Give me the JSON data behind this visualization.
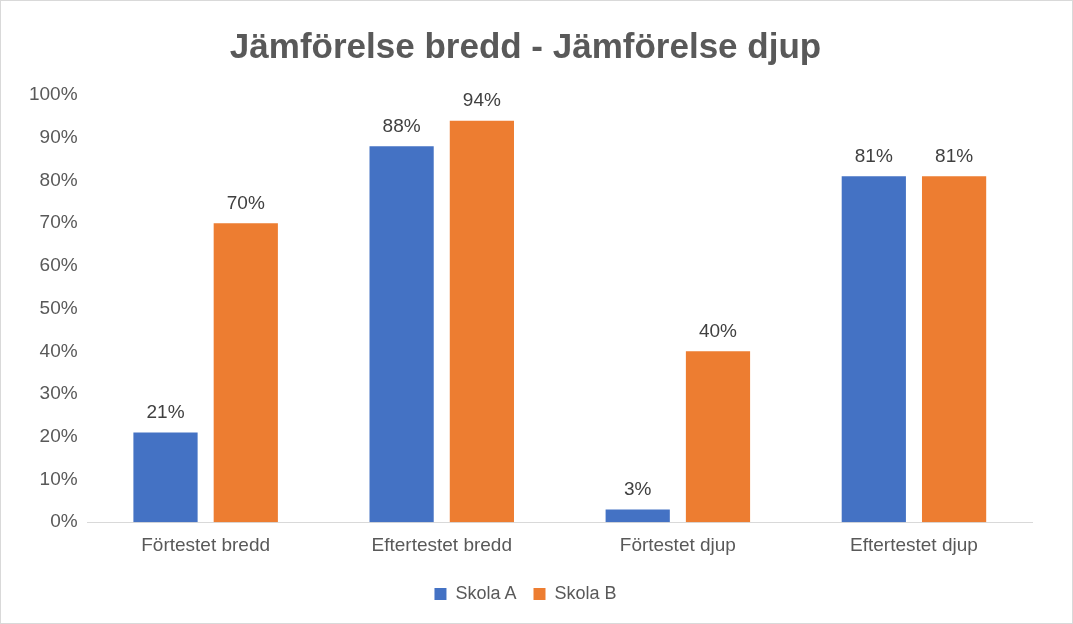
{
  "chart_data": {
    "type": "bar",
    "title": "Jämförelse bredd - Jämförelse djup",
    "categories": [
      "Förtestet bredd",
      "Eftertestet bredd",
      "Förtestet djup",
      "Eftertestet djup"
    ],
    "series": [
      {
        "name": "Skola A",
        "color": "#4472c4",
        "values": [
          21,
          88,
          3,
          81
        ],
        "value_labels": [
          "21%",
          "88%",
          "3%",
          "81%"
        ]
      },
      {
        "name": "Skola B",
        "color": "#ed7d31",
        "values": [
          70,
          94,
          40,
          81
        ],
        "value_labels": [
          "70%",
          "94%",
          "40%",
          "81%"
        ]
      }
    ],
    "ylim": [
      0,
      100
    ],
    "yticks": [
      {
        "value": 0,
        "label": "0%"
      },
      {
        "value": 10,
        "label": "10%"
      },
      {
        "value": 20,
        "label": "20%"
      },
      {
        "value": 30,
        "label": "30%"
      },
      {
        "value": 40,
        "label": "40%"
      },
      {
        "value": 50,
        "label": "50%"
      },
      {
        "value": 60,
        "label": "60%"
      },
      {
        "value": 70,
        "label": "70%"
      },
      {
        "value": 80,
        "label": "80%"
      },
      {
        "value": 90,
        "label": "90%"
      },
      {
        "value": 100,
        "label": "100%"
      }
    ],
    "grid": false,
    "legend": "bottom"
  }
}
